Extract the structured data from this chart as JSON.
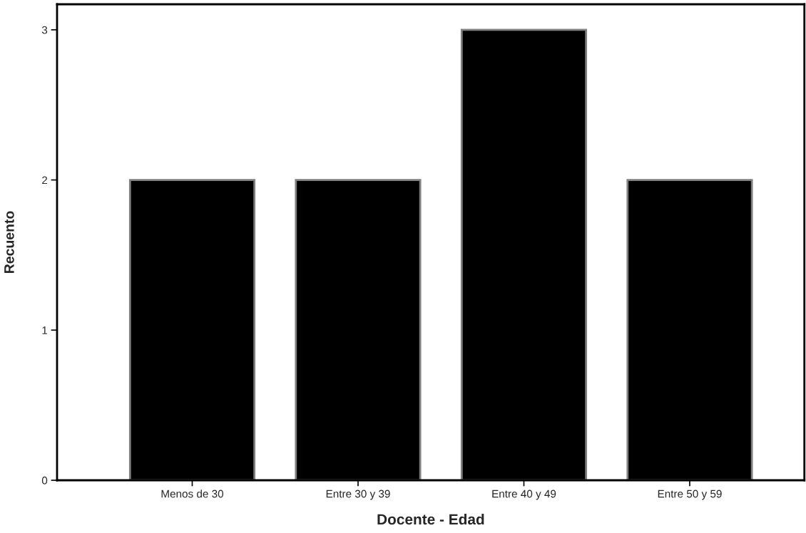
{
  "chart_data": {
    "type": "bar",
    "xlabel": "Docente - Edad",
    "ylabel": "Recuento",
    "categories": [
      "Menos de 30",
      "Entre 30 y 39",
      "Entre 40 y 49",
      "Entre 50 y 59"
    ],
    "values": [
      2,
      2,
      3,
      2
    ],
    "color": "#000000",
    "ylim": [
      0,
      3.17
    ],
    "yticks": [
      0,
      1,
      2,
      3
    ],
    "grid": false
  }
}
